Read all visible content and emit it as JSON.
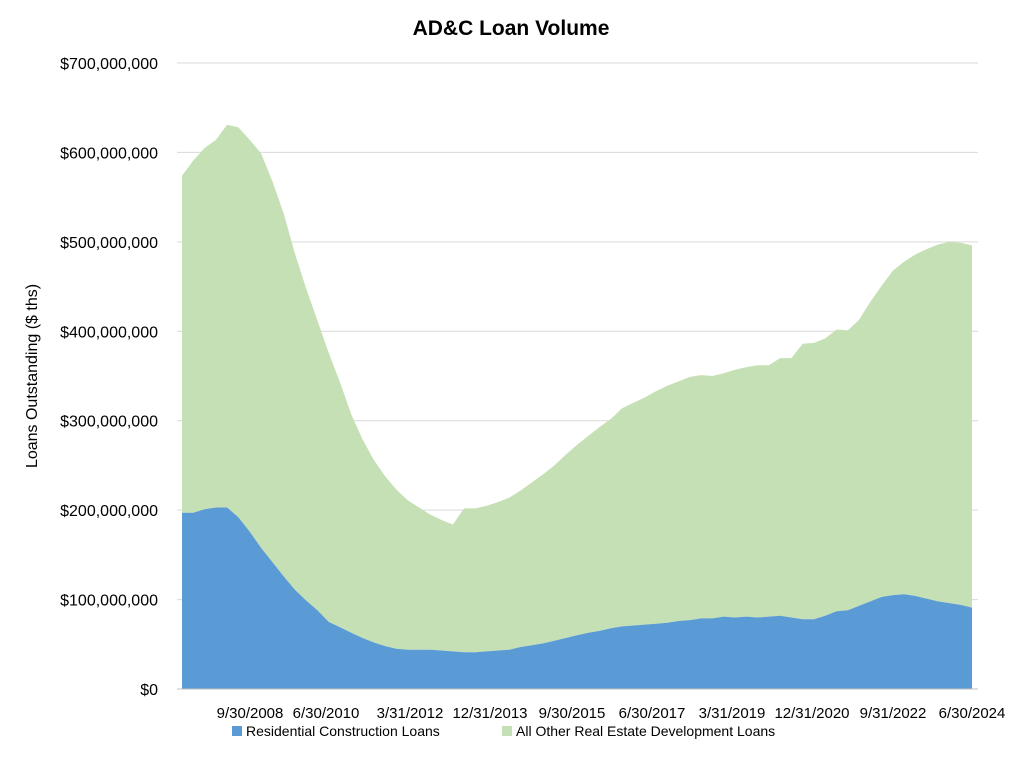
{
  "chart_data": {
    "type": "area",
    "stacked": true,
    "title": "AD&C Loan Volume",
    "xlabel": "",
    "ylabel": "Loans Outstanding ($ ths)",
    "ylim": [
      0,
      700000000
    ],
    "y_ticks": [
      "$0",
      "$100,000,000",
      "$200,000,000",
      "$300,000,000",
      "$400,000,000",
      "$500,000,000",
      "$600,000,000",
      "$700,000,000"
    ],
    "x_tick_labels": [
      "9/30/2008",
      "6/30/2010",
      "3/31/2012",
      "12/31/2013",
      "9/30/2015",
      "6/30/2017",
      "3/31/2019",
      "12/31/2020",
      "9/31/2022",
      "6/30/2024"
    ],
    "grid": "horizontal",
    "legend_position": "bottom",
    "colors": {
      "residential": "#5b9bd5",
      "other": "#c5e0b4"
    },
    "series": [
      {
        "name": "Residential Construction Loans",
        "color": "#5b9bd5",
        "values": [
          197000000,
          197000000,
          201000000,
          203000000,
          203000000,
          192000000,
          176000000,
          158000000,
          142000000,
          126000000,
          111000000,
          99000000,
          88000000,
          75000000,
          69000000,
          63000000,
          57000000,
          52000000,
          48000000,
          45000000,
          44000000,
          44000000,
          44000000,
          43000000,
          42000000,
          41000000,
          41000000,
          42000000,
          43000000,
          44000000,
          47000000,
          49000000,
          51000000,
          54000000,
          57000000,
          60000000,
          63000000,
          65000000,
          68000000,
          70000000,
          71000000,
          72000000,
          73000000,
          74000000,
          76000000,
          77000000,
          79000000,
          79000000,
          81000000,
          80000000,
          81000000,
          80000000,
          81000000,
          82000000,
          80000000,
          78000000,
          78000000,
          82000000,
          87000000,
          88000000,
          93000000,
          98000000,
          103000000,
          105000000,
          106000000,
          104000000,
          101000000,
          98000000,
          96000000,
          94000000,
          91000000
        ]
      },
      {
        "name": "All Other Real Estate Development Loans",
        "color": "#c5e0b4",
        "values": [
          377000000,
          394000000,
          404000000,
          411000000,
          428000000,
          436000000,
          438000000,
          441000000,
          426000000,
          406000000,
          376000000,
          349000000,
          324000000,
          301000000,
          274000000,
          244000000,
          222000000,
          204000000,
          190000000,
          178000000,
          167000000,
          159000000,
          151000000,
          146000000,
          142000000,
          161000000,
          161000000,
          163000000,
          166000000,
          170000000,
          175000000,
          182000000,
          189000000,
          196000000,
          205000000,
          213000000,
          220000000,
          228000000,
          234000000,
          244000000,
          249000000,
          254000000,
          260000000,
          265000000,
          268000000,
          272000000,
          272000000,
          271000000,
          272000000,
          277000000,
          279000000,
          282000000,
          281000000,
          288000000,
          290000000,
          308000000,
          309000000,
          310000000,
          315000000,
          313000000,
          320000000,
          335000000,
          348000000,
          363000000,
          372000000,
          382000000,
          391000000,
          399000000,
          404000000,
          405000000,
          405000000
        ]
      }
    ]
  }
}
